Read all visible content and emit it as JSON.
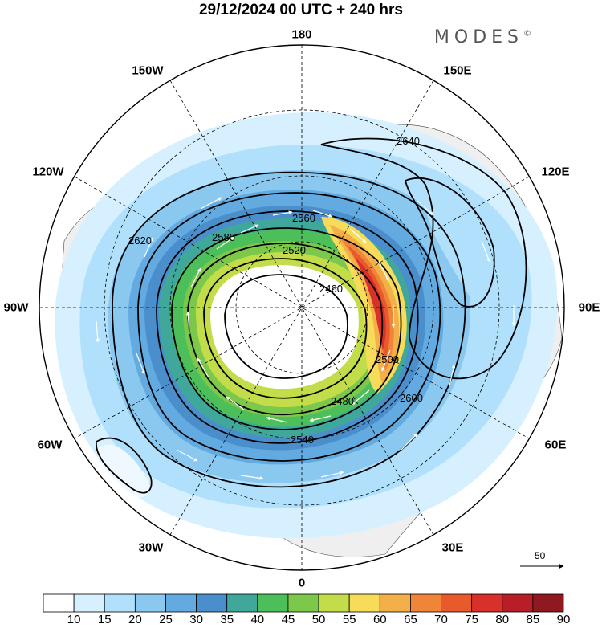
{
  "header": {
    "title": "29/12/2024  00 UTC  + 240 hrs",
    "brand": "MODES",
    "brand_mark": "©"
  },
  "map": {
    "projection": "north-polar-stereographic",
    "longitude_labels": [
      "180",
      "150E",
      "120E",
      "90E",
      "60E",
      "30E",
      "0",
      "30W",
      "60W",
      "90W",
      "120W",
      "150W"
    ],
    "contour_labels": [
      "2460",
      "2480",
      "2500",
      "2520",
      "2540",
      "2560",
      "2580",
      "2600",
      "2620",
      "2640"
    ],
    "colors": {
      "land_shading": "#f0f0f0",
      "contour": "#000000",
      "wind_vectors": "#ffffff"
    }
  },
  "colorbar": {
    "tick_labels": [
      "10",
      "15",
      "20",
      "25",
      "30",
      "35",
      "40",
      "45",
      "50",
      "55",
      "60",
      "65",
      "70",
      "75",
      "80",
      "85",
      "90"
    ],
    "colors": [
      "#ffffff",
      "#d6f0ff",
      "#b0e0fb",
      "#8ac8f0",
      "#62aadf",
      "#4a8fcc",
      "#3fa89a",
      "#4cbf5a",
      "#7cc84a",
      "#c2dc4a",
      "#f6dc58",
      "#f4b048",
      "#f08438",
      "#e85a2c",
      "#d8302a",
      "#b81e26",
      "#901820"
    ]
  },
  "vector_key": {
    "label": "50"
  }
}
